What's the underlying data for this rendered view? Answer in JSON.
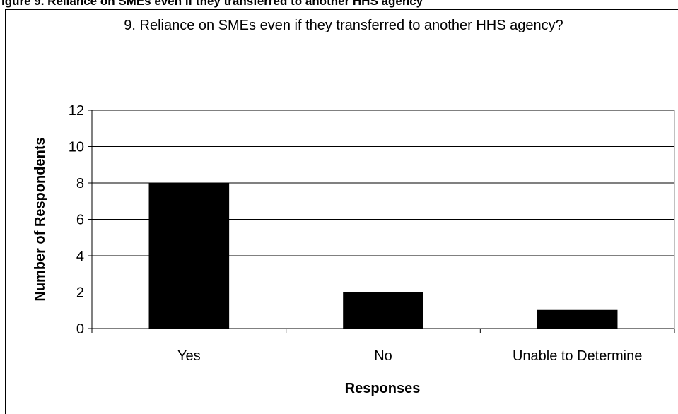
{
  "caption": "igure 9. Reliance on SMEs even if they transferred to another HHS agency",
  "chart_data": {
    "type": "bar",
    "title": "9. Reliance on SMEs even if they transferred to another HHS agency?",
    "xlabel": "Responses",
    "ylabel": "Number of Respondents",
    "categories": [
      "Yes",
      "No",
      "Unable to Determine"
    ],
    "values": [
      8,
      2,
      1
    ],
    "ylim": [
      0,
      12
    ],
    "yticks": [
      "0",
      "2",
      "4",
      "6",
      "8",
      "10",
      "12"
    ],
    "grid": true,
    "legend": "none",
    "bar_color": "#000000"
  }
}
